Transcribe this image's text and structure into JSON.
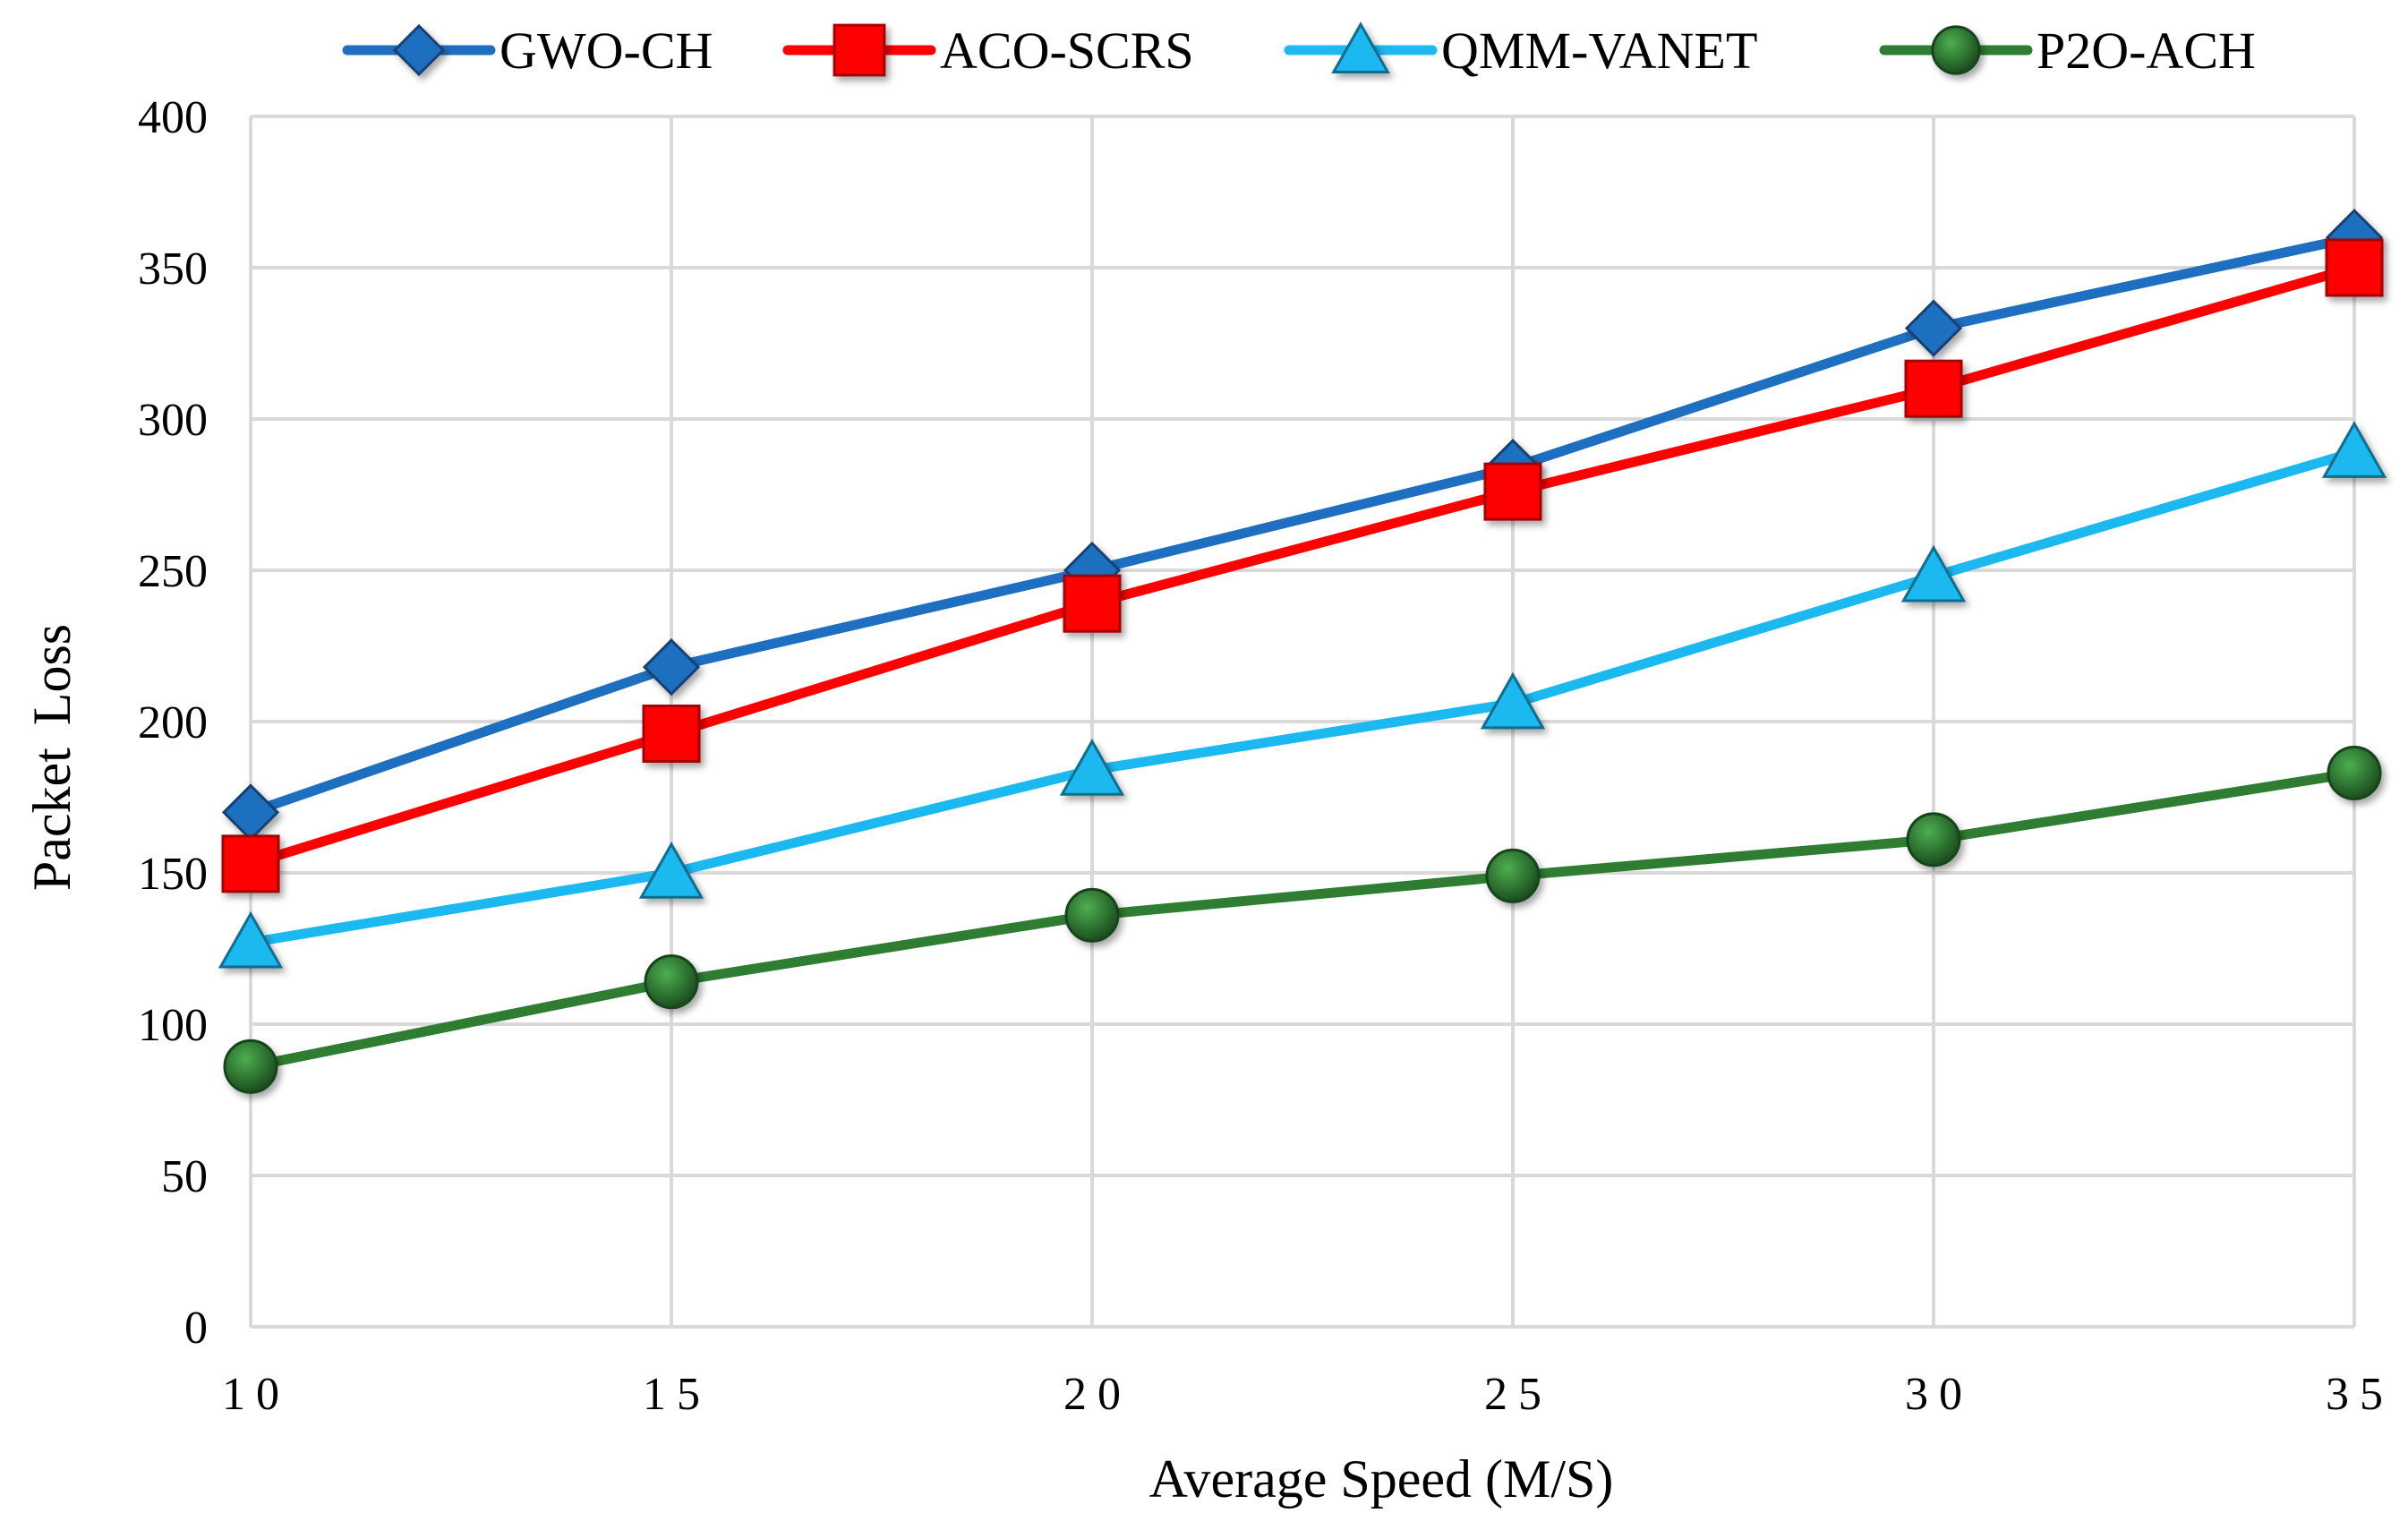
{
  "chart_data": {
    "type": "line",
    "title": "",
    "xlabel": "Average Speed (M/S)",
    "ylabel": "Packet Loss",
    "x": [
      10,
      15,
      20,
      25,
      30,
      35
    ],
    "x_tick_labels": [
      "10",
      "15",
      "20",
      "25",
      "30",
      "35"
    ],
    "y_ticks": [
      0,
      50,
      100,
      150,
      200,
      250,
      300,
      350,
      400
    ],
    "ylim": [
      0,
      400
    ],
    "xlim": [
      10,
      35
    ],
    "grid": true,
    "legend_position": "top",
    "series": [
      {
        "name": "GWO-CH",
        "color": "#1e6fbf",
        "marker": "diamond",
        "values": [
          170,
          218,
          250,
          284,
          330,
          360
        ]
      },
      {
        "name": "ACO-SCRS",
        "color": "#ff0000",
        "marker": "square",
        "values": [
          153,
          196,
          239,
          276,
          310,
          350
        ]
      },
      {
        "name": "QMM-VANET",
        "color": "#1cb8f0",
        "marker": "triangle",
        "values": [
          127,
          150,
          184,
          206,
          248,
          289
        ]
      },
      {
        "name": "P2O-ACH",
        "color": "#2e7d32",
        "marker": "circle",
        "values": [
          86,
          114,
          136,
          149,
          161,
          183
        ]
      }
    ]
  }
}
